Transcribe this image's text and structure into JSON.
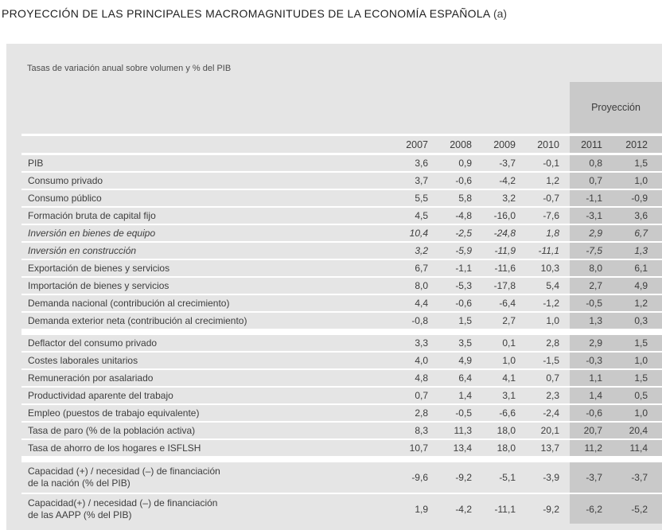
{
  "title": {
    "text": "PROYECCIÓN DE LAS PRINCIPALES MACROMAGNITUDES DE LA ECONOMÍA ESPAÑOLA",
    "suffix": "(a)"
  },
  "subtitle": "Tasas de variación anual sobre volumen y % del PIB",
  "projection_label": "Proyección",
  "years": [
    "2007",
    "2008",
    "2009",
    "2010",
    "2011",
    "2012"
  ],
  "colors": {
    "panel_bg": "#e5e5e5",
    "projection_bg": "#c9c9c9",
    "separator": "#ffffff",
    "text": "#3d3d3d",
    "title_text": "#1f1f1f"
  },
  "rows": [
    {
      "label": "PIB",
      "values": [
        "3,6",
        "0,9",
        "-3,7",
        "-0,1",
        "0,8",
        "1,5"
      ],
      "italic": false,
      "group_end": false
    },
    {
      "label": "Consumo privado",
      "values": [
        "3,7",
        "-0,6",
        "-4,2",
        "1,2",
        "0,7",
        "1,0"
      ],
      "italic": false,
      "group_end": false
    },
    {
      "label": "Consumo público",
      "values": [
        "5,5",
        "5,8",
        "3,2",
        "-0,7",
        "-1,1",
        "-0,9"
      ],
      "italic": false,
      "group_end": false
    },
    {
      "label": "Formación bruta de capital fijo",
      "values": [
        "4,5",
        "-4,8",
        "-16,0",
        "-7,6",
        "-3,1",
        "3,6"
      ],
      "italic": false,
      "group_end": false
    },
    {
      "label": "Inversión en bienes de equipo",
      "values": [
        "10,4",
        "-2,5",
        "-24,8",
        "1,8",
        "2,9",
        "6,7"
      ],
      "italic": true,
      "group_end": false
    },
    {
      "label": "Inversión en construcción",
      "values": [
        "3,2",
        "-5,9",
        "-11,9",
        "-11,1",
        "-7,5",
        "1,3"
      ],
      "italic": true,
      "group_end": false
    },
    {
      "label": "Exportación de bienes y servicios",
      "values": [
        "6,7",
        "-1,1",
        "-11,6",
        "10,3",
        "8,0",
        "6,1"
      ],
      "italic": false,
      "group_end": false
    },
    {
      "label": "Importación de bienes y servicios",
      "values": [
        "8,0",
        "-5,3",
        "-17,8",
        "5,4",
        "2,7",
        "4,9"
      ],
      "italic": false,
      "group_end": false
    },
    {
      "label": "Demanda nacional (contribución al crecimiento)",
      "values": [
        "4,4",
        "-0,6",
        "-6,4",
        "-1,2",
        "-0,5",
        "1,2"
      ],
      "italic": false,
      "group_end": false
    },
    {
      "label": "Demanda exterior neta (contribución al crecimiento)",
      "values": [
        "-0,8",
        "1,5",
        "2,7",
        "1,0",
        "1,3",
        "0,3"
      ],
      "italic": false,
      "group_end": true
    },
    {
      "label": "Deflactor del consumo privado",
      "values": [
        "3,3",
        "3,5",
        "0,1",
        "2,8",
        "2,9",
        "1,5"
      ],
      "italic": false,
      "group_end": false
    },
    {
      "label": "Costes laborales unitarios",
      "values": [
        "4,0",
        "4,9",
        "1,0",
        "-1,5",
        "-0,3",
        "1,0"
      ],
      "italic": false,
      "group_end": false
    },
    {
      "label": "Remuneración por asalariado",
      "values": [
        "4,8",
        "6,4",
        "4,1",
        "0,7",
        "1,1",
        "1,5"
      ],
      "italic": false,
      "group_end": false
    },
    {
      "label": "Productividad aparente del trabajo",
      "values": [
        "0,7",
        "1,4",
        "3,1",
        "2,3",
        "1,4",
        "0,5"
      ],
      "italic": false,
      "group_end": false
    },
    {
      "label": "Empleo (puestos de trabajo equivalente)",
      "values": [
        "2,8",
        "-0,5",
        "-6,6",
        "-2,4",
        "-0,6",
        "1,0"
      ],
      "italic": false,
      "group_end": false
    },
    {
      "label": "Tasa de paro (% de la población activa)",
      "values": [
        "8,3",
        "11,3",
        "18,0",
        "20,1",
        "20,7",
        "20,4"
      ],
      "italic": false,
      "group_end": false
    },
    {
      "label": "Tasa de ahorro de los hogares e ISFLSH",
      "values": [
        "10,7",
        "13,4",
        "18,0",
        "13,7",
        "11,2",
        "11,4"
      ],
      "italic": false,
      "group_end": true
    },
    {
      "label": "Capacidad (+) / necesidad (–) de financiación",
      "label2": "de la nación (% del PIB)",
      "values": [
        "-9,6",
        "-9,2",
        "-5,1",
        "-3,9",
        "-3,7",
        "-3,7"
      ],
      "italic": false,
      "group_end": false,
      "two_line": true
    },
    {
      "label": "Capacidad(+) / necesidad (–) de financiación",
      "label2": "de las AAPP (% del PIB)",
      "values": [
        "1,9",
        "-4,2",
        "-11,1",
        "-9,2",
        "-6,2",
        "-5,2"
      ],
      "italic": false,
      "group_end": false,
      "two_line": true
    }
  ]
}
